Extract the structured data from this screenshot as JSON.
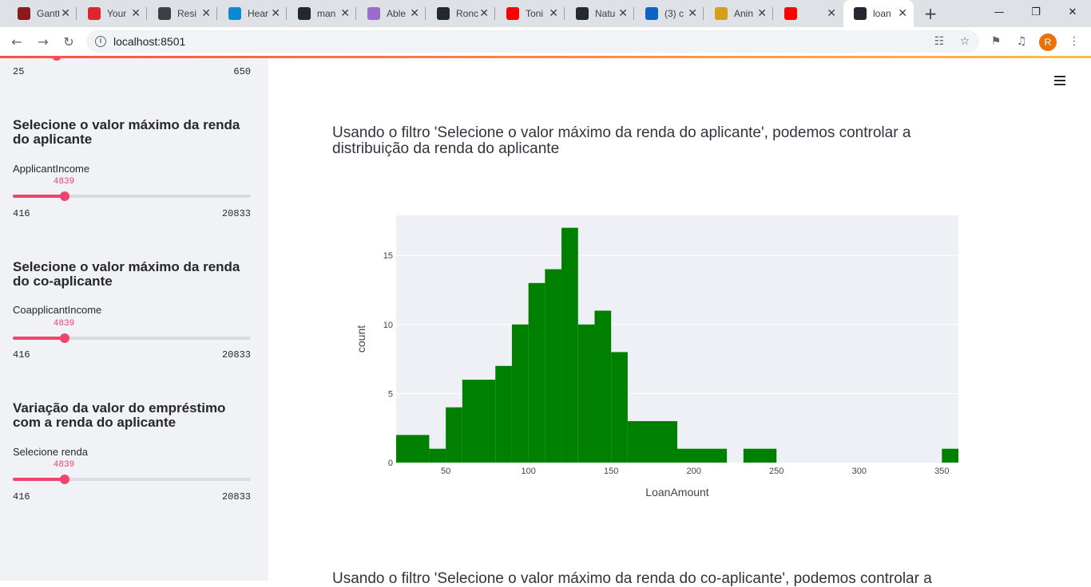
{
  "browser": {
    "tabs": [
      {
        "label": "Gantt",
        "icon": "gantt-icon",
        "color": "#8b1a1a"
      },
      {
        "label": "Your",
        "icon": "crown-icon",
        "color": "#e0242b"
      },
      {
        "label": "Resi",
        "icon": "phone-icon",
        "color": "#3c4043"
      },
      {
        "label": "Hear",
        "icon": "k-icon",
        "color": "#0a8ad6"
      },
      {
        "label": "man",
        "icon": "github-icon",
        "color": "#24292e"
      },
      {
        "label": "Able",
        "icon": "a-icon",
        "color": "#9b6bcc"
      },
      {
        "label": "Ronc",
        "icon": "github-icon",
        "color": "#24292e"
      },
      {
        "label": "Toni",
        "icon": "youtube-icon",
        "color": "#ff0000"
      },
      {
        "label": "Natu",
        "icon": "github-icon",
        "color": "#24292e"
      },
      {
        "label": "(3) c",
        "icon": "linkedin-icon",
        "color": "#0a66c2"
      },
      {
        "label": "Anin",
        "icon": "fw-icon",
        "color": "#d4a017"
      },
      {
        "label": "",
        "icon": "youtube-icon",
        "color": "#ff0000"
      },
      {
        "label": "loan",
        "icon": "streamlit-icon",
        "color": "#262730",
        "active": true
      }
    ],
    "url": "localhost:8501",
    "profile_initial": "R"
  },
  "sidebar": {
    "top_slider": {
      "min_label": "25",
      "max_label": "650"
    },
    "sections": [
      {
        "heading": "Selecione o valor máximo da renda do aplicante",
        "label": "ApplicantIncome",
        "value": "4839",
        "min": "416",
        "max": "20833",
        "fraction": 0.217
      },
      {
        "heading": "Selecione o valor máximo da renda do co-aplicante",
        "label": "CoapplicantIncome",
        "value": "4839",
        "min": "416",
        "max": "20833",
        "fraction": 0.217
      },
      {
        "heading": "Variação da valor do empréstimo com a renda do aplicante",
        "label": "Selecione renda",
        "value": "4839",
        "min": "416",
        "max": "20833",
        "fraction": 0.217
      }
    ]
  },
  "main": {
    "paragraph_1": "Usando o filtro 'Selecione o valor máximo da renda do aplicante', podemos controlar a distribuição da renda do aplicante",
    "paragraph_2": "Usando o filtro 'Selecione o valor máximo da renda do co-aplicante', podemos controlar a"
  },
  "chart_data": {
    "type": "bar",
    "xlabel": "LoanAmount",
    "ylabel": "count",
    "bar_color": "#008000",
    "plot_bg": "#eff0f5",
    "xlim": [
      20,
      360
    ],
    "ylim": [
      0,
      17.9
    ],
    "x_ticks": [
      50,
      100,
      150,
      200,
      250,
      300,
      350
    ],
    "y_ticks": [
      0,
      5,
      10,
      15
    ],
    "bins": [
      {
        "x0": 20,
        "x1": 40,
        "count": 2
      },
      {
        "x0": 40,
        "x1": 50,
        "count": 1
      },
      {
        "x0": 50,
        "x1": 60,
        "count": 4
      },
      {
        "x0": 60,
        "x1": 80,
        "count": 6
      },
      {
        "x0": 80,
        "x1": 90,
        "count": 7
      },
      {
        "x0": 90,
        "x1": 100,
        "count": 10
      },
      {
        "x0": 100,
        "x1": 110,
        "count": 13
      },
      {
        "x0": 110,
        "x1": 120,
        "count": 14
      },
      {
        "x0": 120,
        "x1": 130,
        "count": 17
      },
      {
        "x0": 130,
        "x1": 140,
        "count": 10
      },
      {
        "x0": 140,
        "x1": 150,
        "count": 11
      },
      {
        "x0": 150,
        "x1": 160,
        "count": 8
      },
      {
        "x0": 160,
        "x1": 190,
        "count": 3
      },
      {
        "x0": 190,
        "x1": 220,
        "count": 1
      },
      {
        "x0": 230,
        "x1": 250,
        "count": 1
      },
      {
        "x0": 350,
        "x1": 360,
        "count": 1
      }
    ]
  }
}
